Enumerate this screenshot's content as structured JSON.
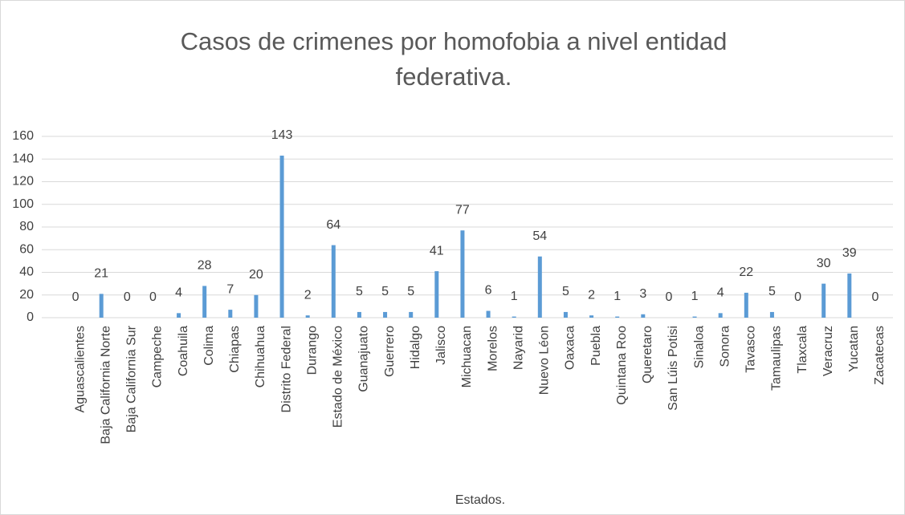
{
  "chart_data": {
    "type": "bar",
    "title": "Casos de crimenes por homofobia a nivel entidad federativa.",
    "x_label": "Estados.",
    "categories": [
      "Aguascalientes",
      "Baja California Norte",
      "Baja California Sur",
      "Campeche",
      "Coahuila",
      "Colima",
      "Chiapas",
      "Chihuahua",
      "Distrito Federal",
      "Durango",
      "Estado de México",
      "Guanajuato",
      "Guerrero",
      "Hidalgo",
      "Jalisco",
      "Michuacan",
      "Morelos",
      "Nayarid",
      "Nuevo Léon",
      "Oaxaca",
      "Puebla",
      "Quintana Roo",
      "Queretaro",
      "San Lúis Potisi",
      "Sinaloa",
      "Sonora",
      "Tavasco",
      "Tamaulipas",
      "Tlaxcala",
      "Veracruz",
      "Yucatan",
      "Zacatecas"
    ],
    "values": [
      0,
      21,
      0,
      0,
      4,
      28,
      7,
      20,
      143,
      2,
      64,
      5,
      5,
      5,
      41,
      77,
      6,
      1,
      54,
      5,
      2,
      1,
      3,
      0,
      1,
      4,
      22,
      5,
      0,
      30,
      39,
      0
    ],
    "color": "#5b9bd5",
    "ylim": [
      0,
      160
    ],
    "yticks": [
      0,
      20,
      40,
      60,
      80,
      100,
      120,
      140,
      160
    ],
    "grid": true
  }
}
